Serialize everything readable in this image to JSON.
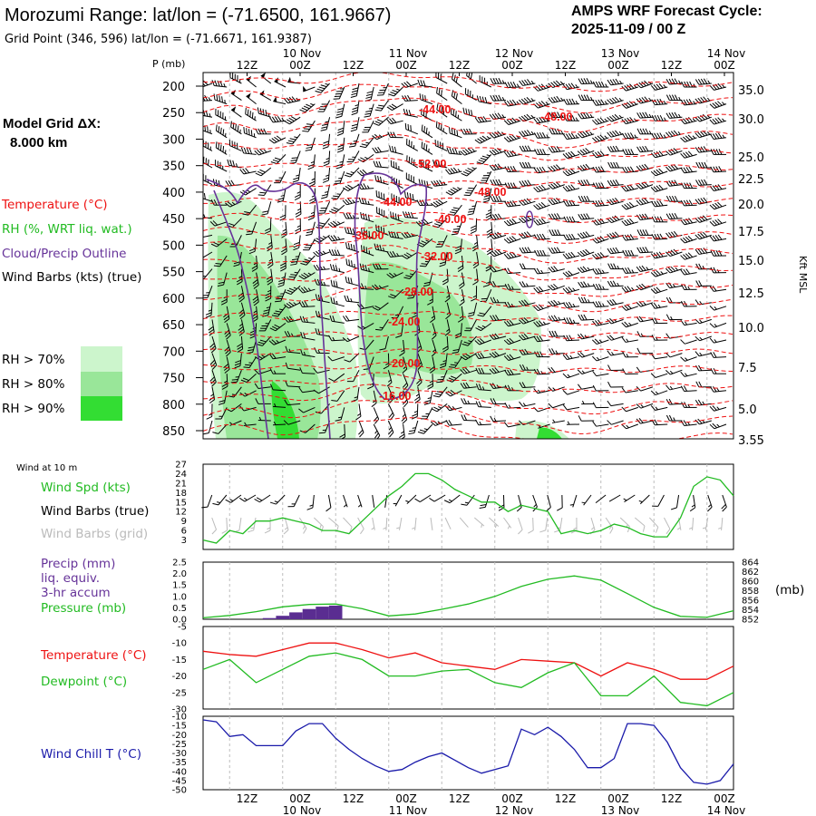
{
  "header": {
    "title": "Morozumi Range:  lat/lon = (-71.6500, 161.9667)",
    "subtitle": "Grid Point (346, 596) lat/lon = (-71.6671, 161.9387)",
    "cycle_line1": "AMPS WRF Forecast Cycle:",
    "cycle_line2": "2025-11-09 / 00  Z"
  },
  "left_panel": {
    "model_grid_label": "Model Grid ΔX:",
    "model_grid_value": "8.000 km",
    "legend": {
      "temperature": "Temperature (°C)",
      "rh": "RH (%, WRT liq. wat.)",
      "cloud": "Cloud/Precip Outline",
      "wind": "Wind Barbs (kts) (true)"
    },
    "rh_keys": [
      {
        "label": "RH > 70%",
        "color": "#ccf5cc"
      },
      {
        "label": "RH > 80%",
        "color": "#99e699"
      },
      {
        "label": "RH > 90%",
        "color": "#33dd33"
      }
    ]
  },
  "colors": {
    "temp": "#ee1111",
    "rh_green": "#22bb22",
    "cloud": "#663399",
    "precip": "#5a2d91",
    "wind_chill": "#1a1aaa",
    "grid_barb": "#bbbbbb",
    "grid_line": "#bdbdbd"
  },
  "chart_data": [
    {
      "type": "heatmap",
      "name": "time-height cross section",
      "x_axis": {
        "top_hour_ticks": [
          "12Z",
          "00Z",
          "12Z",
          "00Z",
          "12Z",
          "00Z",
          "12Z",
          "00Z",
          "12Z",
          "00Z"
        ],
        "top_date_ticks": [
          "10 Nov",
          "11 Nov",
          "12 Nov",
          "13 Nov",
          "14 Nov"
        ],
        "range_hours": [
          0,
          120
        ]
      },
      "y_axis_left": {
        "label": "P (mb)",
        "ticks": [
          200,
          250,
          300,
          350,
          400,
          450,
          500,
          550,
          600,
          650,
          700,
          750,
          800,
          850
        ]
      },
      "y_axis_right": {
        "label": "Kft MSL",
        "ticks": [
          "35.0",
          "30.0",
          "25.0",
          "22.5",
          "20.0",
          "17.5",
          "15.0",
          "12.5",
          "10.0",
          "7.5",
          "5.0",
          "3.55"
        ]
      },
      "isotherm_labels": [
        "-44.00",
        "-48.00",
        "-52.00",
        "-48.00",
        "-44.00",
        "-40.00",
        "-36.00",
        "-32.00",
        "-28.00",
        "-24.00",
        "-20.00",
        "-16.00"
      ]
    },
    {
      "type": "line",
      "name": "10 m wind",
      "panel_title": "Wind at 10 m",
      "labels": {
        "speed": "Wind Spd (kts)",
        "true": "Wind Barbs (true)",
        "grid": "Wind Barbs (grid)"
      },
      "y_ticks": [
        3,
        6,
        9,
        12,
        15,
        18,
        21,
        24,
        27
      ],
      "ylim": [
        0,
        27
      ],
      "x": [
        0,
        3,
        6,
        9,
        12,
        15,
        18,
        21,
        24,
        27,
        30,
        33,
        36,
        39,
        42,
        45,
        48,
        51,
        54,
        57,
        60,
        63,
        66,
        69,
        72,
        75,
        78,
        81,
        84,
        87,
        90,
        93,
        96,
        99,
        102,
        105,
        108,
        111,
        114,
        117,
        120
      ],
      "values": [
        3,
        2,
        6,
        5,
        9,
        9,
        10,
        9,
        8,
        6,
        6,
        5,
        9,
        13,
        17,
        20,
        24,
        24,
        22,
        19,
        17,
        15,
        15,
        12,
        14,
        13,
        12,
        5,
        6,
        5,
        6,
        8,
        7,
        5,
        4,
        4,
        10,
        20,
        23,
        22,
        17
      ]
    },
    {
      "type": "bar",
      "name": "precip and pressure",
      "labels": {
        "precip": "Precip (mm)",
        "liq": "liq. equiv.",
        "accum": "3-hr accum",
        "pressure": "Pressure (mb)"
      },
      "right_label": "(mb)",
      "precip_ticks": [
        "2.5",
        "2.0",
        "1.5",
        "1.0",
        "0.5",
        "0.0"
      ],
      "pressure_ticks": [
        852,
        854,
        856,
        858,
        860,
        862,
        864
      ],
      "precip_ylim": [
        0,
        2.5
      ],
      "pressure_ylim": [
        852,
        864
      ],
      "precip_x": [
        15,
        18,
        21,
        24,
        27,
        30
      ],
      "precip_values": [
        0.05,
        0.15,
        0.3,
        0.45,
        0.55,
        0.6
      ],
      "pressure_x": [
        0,
        6,
        12,
        18,
        24,
        30,
        36,
        42,
        48,
        54,
        60,
        66,
        72,
        78,
        84,
        90,
        96,
        102,
        108,
        114,
        120
      ],
      "pressure_values": [
        852.3,
        852.8,
        853.6,
        854.6,
        855.1,
        855.2,
        854.2,
        852.7,
        853.1,
        854.1,
        855.2,
        856.8,
        858.9,
        860.4,
        861.1,
        860.2,
        857.4,
        854.5,
        852.6,
        852.4,
        853.8
      ]
    },
    {
      "type": "line",
      "name": "temperature and dewpoint",
      "labels": {
        "temperature": "Temperature (°C)",
        "dewpoint": "Dewpoint (°C)"
      },
      "y_ticks": [
        -5,
        -10,
        -15,
        -20,
        -25,
        -30
      ],
      "ylim": [
        -30,
        -5
      ],
      "x": [
        0,
        6,
        12,
        18,
        24,
        30,
        36,
        42,
        48,
        54,
        60,
        66,
        72,
        78,
        84,
        90,
        96,
        102,
        108,
        114,
        120
      ],
      "series": [
        {
          "name": "Temperature",
          "values": [
            -12.5,
            -13.5,
            -14,
            -12,
            -10,
            -10,
            -12,
            -14.5,
            -13,
            -16,
            -17,
            -18,
            -15,
            -15.5,
            -16,
            -20,
            -16,
            -18,
            -21,
            -21,
            -17
          ]
        },
        {
          "name": "Dewpoint",
          "values": [
            -18,
            -15,
            -22,
            -18,
            -14,
            -13,
            -15,
            -20,
            -20,
            -18.5,
            -18,
            -22,
            -23.5,
            -19,
            -16,
            -26,
            -26,
            -20,
            -28,
            -29,
            -25
          ]
        }
      ]
    },
    {
      "type": "line",
      "name": "wind chill",
      "labels": {
        "windchill": "Wind Chill T (°C)"
      },
      "y_ticks": [
        -10,
        -15,
        -20,
        -25,
        -30,
        -35,
        -40,
        -45,
        -50
      ],
      "ylim": [
        -50,
        -10
      ],
      "x": [
        0,
        3,
        6,
        9,
        12,
        15,
        18,
        21,
        24,
        27,
        30,
        33,
        36,
        39,
        42,
        45,
        48,
        51,
        54,
        57,
        60,
        63,
        66,
        69,
        72,
        75,
        78,
        81,
        84,
        87,
        90,
        93,
        96,
        99,
        102,
        105,
        108,
        111,
        114,
        117,
        120
      ],
      "values": [
        -12,
        -13,
        -21,
        -20,
        -26,
        -26,
        -26,
        -18,
        -14,
        -14,
        -22,
        -28,
        -33,
        -37,
        -40,
        -39,
        -35,
        -32,
        -30,
        -34,
        -38,
        -41,
        -39,
        -37,
        -17,
        -20,
        -16,
        -21,
        -28,
        -38,
        -38,
        -33,
        -14,
        -14,
        -15,
        -24,
        -38,
        -46,
        -47,
        -45,
        -36
      ]
    }
  ],
  "bottom_axis": {
    "hour_ticks": [
      "12Z",
      "00Z",
      "12Z",
      "00Z",
      "12Z",
      "00Z",
      "12Z",
      "00Z",
      "12Z",
      "00Z"
    ],
    "date_ticks": [
      "10 Nov",
      "11 Nov",
      "12 Nov",
      "13 Nov",
      "14 Nov"
    ]
  }
}
